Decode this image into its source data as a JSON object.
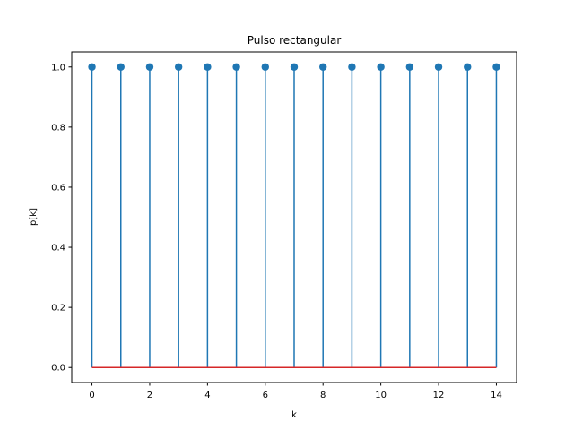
{
  "chart_data": {
    "type": "stem",
    "title": "Pulso rectangular",
    "xlabel": "k",
    "ylabel": "p[k]",
    "x": [
      0,
      1,
      2,
      3,
      4,
      5,
      6,
      7,
      8,
      9,
      10,
      11,
      12,
      13,
      14
    ],
    "y": [
      1,
      1,
      1,
      1,
      1,
      1,
      1,
      1,
      1,
      1,
      1,
      1,
      1,
      1,
      1
    ],
    "baseline": 0,
    "xlim": [
      -0.7,
      14.7
    ],
    "ylim": [
      -0.05,
      1.05
    ],
    "xticks": [
      0,
      2,
      4,
      6,
      8,
      10,
      12,
      14
    ],
    "yticks": [
      0.0,
      0.2,
      0.4,
      0.6,
      0.8,
      1.0
    ],
    "ytick_labels": [
      "0.0",
      "0.2",
      "0.4",
      "0.6",
      "0.8",
      "1.0"
    ],
    "grid": false,
    "colors": {
      "stem": "#1f77b4",
      "marker": "#1f77b4",
      "baseline": "#d62728"
    }
  }
}
